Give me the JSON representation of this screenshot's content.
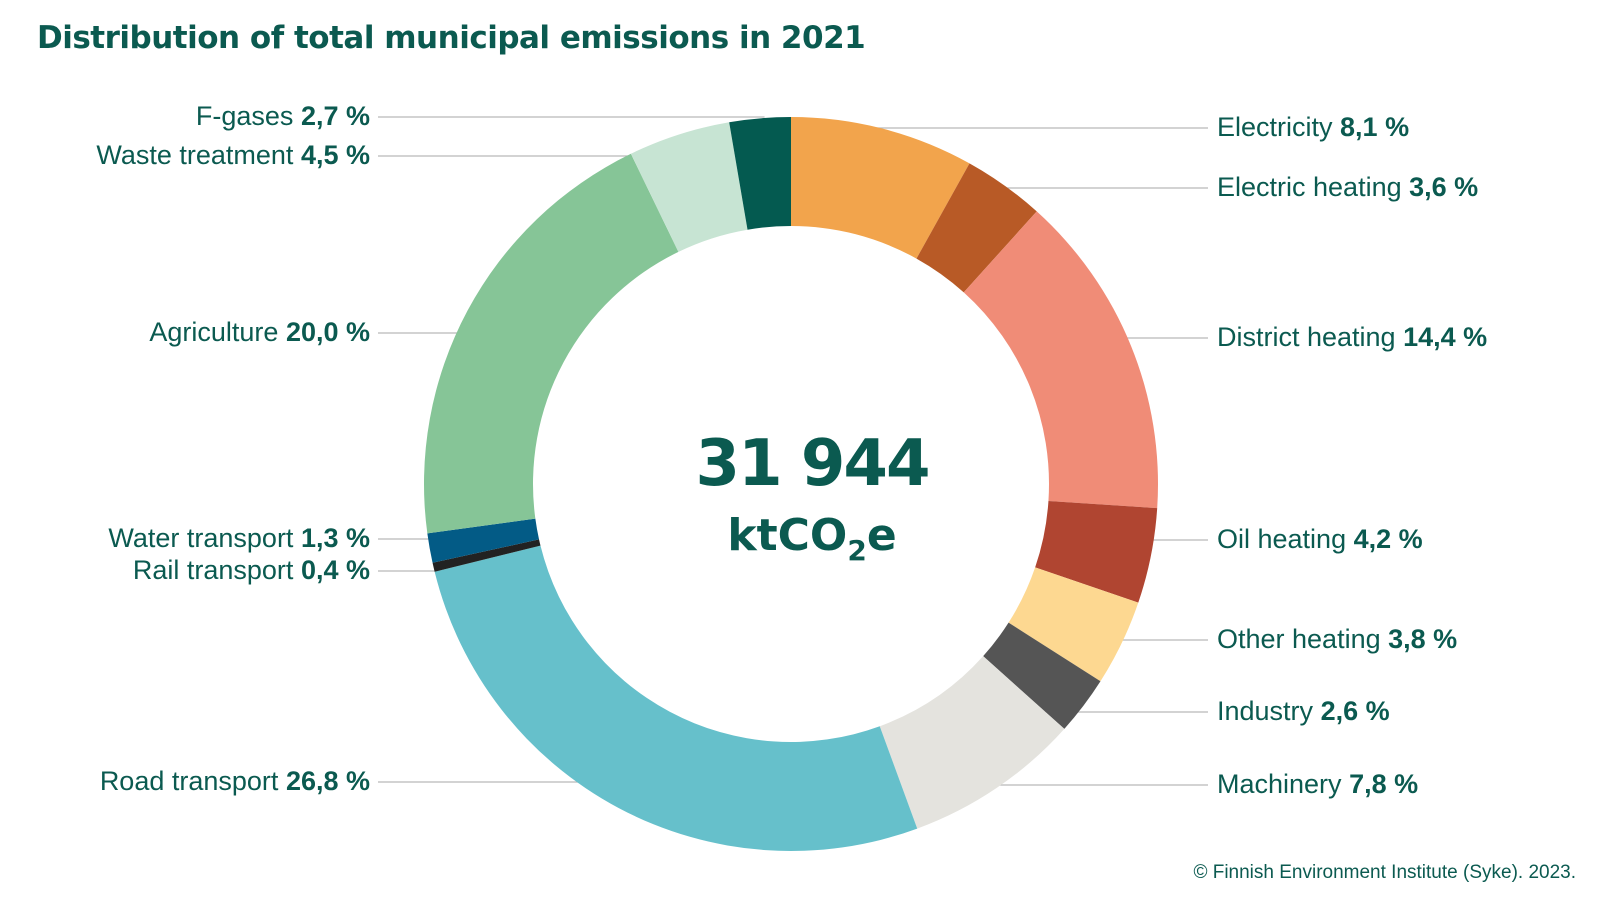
{
  "title": "Distribution of total municipal emissions in 2021",
  "center": {
    "total": "31 944",
    "unit_prefix": "ktCO",
    "unit_sub": "2",
    "unit_suffix": "e"
  },
  "copyright": "© Finnish Environment Institute (Syke). 2023.",
  "chart_data": {
    "type": "pie",
    "donut": true,
    "title": "Distribution of total municipal emissions in 2021",
    "total": 31944,
    "unit": "ktCO2e",
    "slices": [
      {
        "name": "Electricity",
        "value": 8.1,
        "label_value": "8,1 %",
        "color": "#f2a44c"
      },
      {
        "name": "Electric heating",
        "value": 3.6,
        "label_value": "3,6 %",
        "color": "#b85a26"
      },
      {
        "name": "District heating",
        "value": 14.4,
        "label_value": "14,4 %",
        "color": "#f08c77"
      },
      {
        "name": "Oil heating",
        "value": 4.2,
        "label_value": "4,2 %",
        "color": "#b04531"
      },
      {
        "name": "Other heating",
        "value": 3.8,
        "label_value": "3,8 %",
        "color": "#fdd891"
      },
      {
        "name": "Industry",
        "value": 2.6,
        "label_value": "2,6 %",
        "color": "#555555"
      },
      {
        "name": "Machinery",
        "value": 7.8,
        "label_value": "7,8 %",
        "color": "#e4e3de"
      },
      {
        "name": "Road transport",
        "value": 26.8,
        "label_value": "26,8 %",
        "color": "#66c0cb"
      },
      {
        "name": "Rail transport",
        "value": 0.4,
        "label_value": "0,4 %",
        "color": "#222222"
      },
      {
        "name": "Water transport",
        "value": 1.3,
        "label_value": "1,3 %",
        "color": "#035b86"
      },
      {
        "name": "Agriculture",
        "value": 20.0,
        "label_value": "20,0 %",
        "color": "#86c597"
      },
      {
        "name": "Waste treatment",
        "value": 4.5,
        "label_value": "4,5 %",
        "color": "#c7e4d3"
      },
      {
        "name": "F-gases",
        "value": 2.7,
        "label_value": "2,7 %",
        "color": "#045a50"
      }
    ]
  }
}
